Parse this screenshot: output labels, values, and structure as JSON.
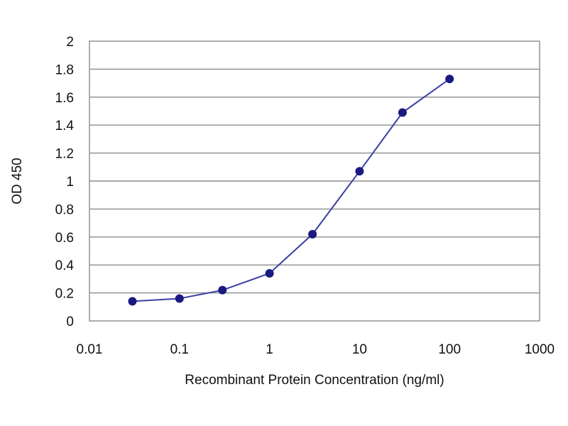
{
  "chart_data": {
    "type": "line",
    "title": "",
    "xlabel": "Recombinant Protein Concentration (ng/ml)",
    "ylabel": "OD 450",
    "x_scale": "log",
    "xlim": [
      0.01,
      1000
    ],
    "ylim": [
      0,
      2
    ],
    "grid": {
      "horizontal": true,
      "vertical": false
    },
    "legend": "none",
    "x_ticks": [
      "0.01",
      "0.1",
      "1",
      "10",
      "100",
      "1000"
    ],
    "y_ticks": [
      "0",
      "0.2",
      "0.4",
      "0.6",
      "0.8",
      "1",
      "1.2",
      "1.4",
      "1.6",
      "1.8",
      "2"
    ],
    "series": [
      {
        "x": [
          0.03,
          0.1,
          0.3,
          1,
          3,
          10,
          30,
          100
        ],
        "y": [
          0.14,
          0.16,
          0.22,
          0.34,
          0.62,
          1.07,
          1.49,
          1.73
        ]
      }
    ],
    "colors": {
      "line": "#3b3fa3",
      "marker": "#1a1a80",
      "grid": "#8c8c8c",
      "plot_border": "#8c8c8c"
    }
  }
}
